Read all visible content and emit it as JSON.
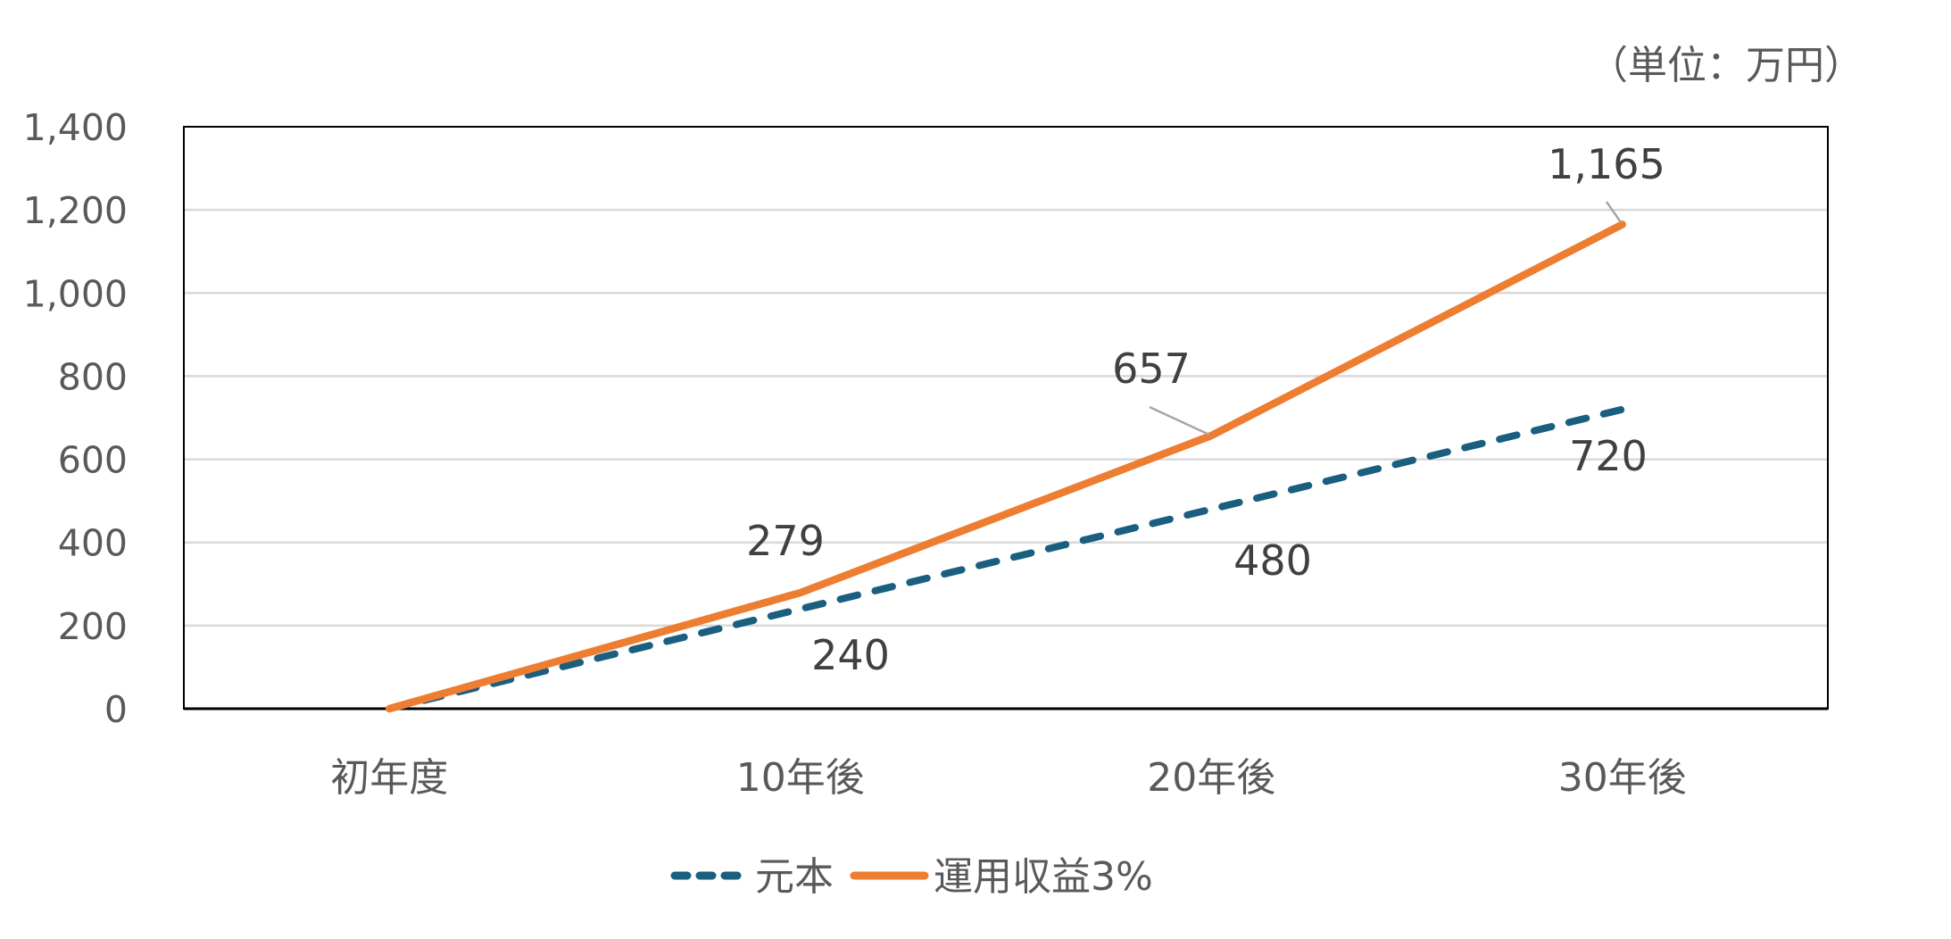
{
  "unit_label": "（単位：万円）",
  "chart_data": {
    "type": "line",
    "title": "",
    "xlabel": "",
    "ylabel": "",
    "unit": "（単位：万円）",
    "categories": [
      "初年度",
      "10年後",
      "20年後",
      "30年後"
    ],
    "series": [
      {
        "name": "元本",
        "values": [
          0,
          240,
          480,
          720
        ],
        "color": "#1A5E80",
        "style": "dashed",
        "data_labels": [
          null,
          "240",
          "480",
          "720"
        ]
      },
      {
        "name": "運用収益3%",
        "values": [
          0,
          279,
          657,
          1165
        ],
        "color": "#ED7D31",
        "style": "solid",
        "data_labels": [
          null,
          "279",
          "657",
          "1,165"
        ]
      }
    ],
    "ylim": [
      0,
      1400
    ],
    "yticks": [
      0,
      200,
      400,
      600,
      800,
      1000,
      1200,
      1400
    ],
    "ytick_labels": [
      "0",
      "200",
      "400",
      "600",
      "800",
      "1,000",
      "1,200",
      "1,400"
    ],
    "grid": true,
    "legend_position": "bottom"
  },
  "legend": [
    {
      "label": "元本",
      "color": "#1A5E80",
      "style": "dashed"
    },
    {
      "label": "運用収益3%",
      "color": "#ED7D31",
      "style": "solid"
    }
  ]
}
